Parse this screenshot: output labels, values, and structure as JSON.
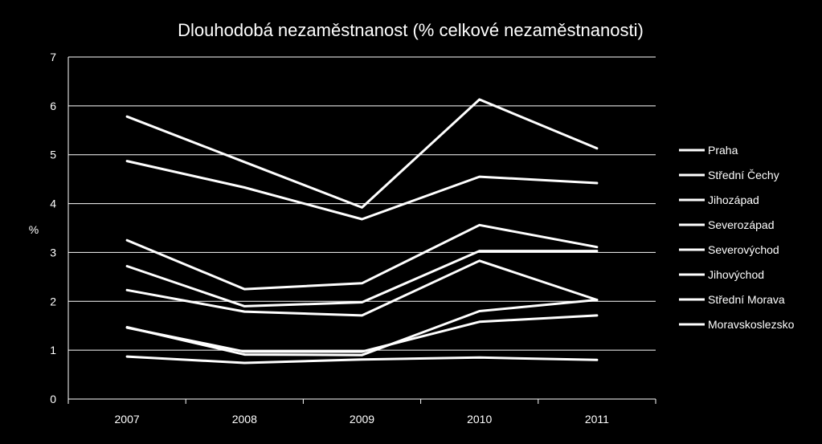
{
  "chart_data": {
    "type": "line",
    "title": "Dlouhodobá nezaměstnanost (% celkové nezaměstnanosti)",
    "xlabel": "",
    "ylabel": "%",
    "categories": [
      "2007",
      "2008",
      "2009",
      "2010",
      "2011"
    ],
    "ylim": [
      0,
      7
    ],
    "yticks": [
      0,
      1,
      2,
      3,
      4,
      5,
      6,
      7
    ],
    "grid": true,
    "legend_position": "right",
    "series": [
      {
        "name": "Praha",
        "values": [
          0.87,
          0.74,
          0.81,
          0.85,
          0.8
        ]
      },
      {
        "name": "Střední Čechy",
        "values": [
          1.46,
          0.97,
          0.97,
          1.58,
          1.71
        ]
      },
      {
        "name": "Jihozápad",
        "values": [
          2.23,
          1.79,
          1.71,
          2.83,
          2.03
        ]
      },
      {
        "name": "Severozápad",
        "values": [
          5.78,
          4.85,
          3.92,
          6.13,
          5.13
        ]
      },
      {
        "name": "Severovýchod",
        "values": [
          1.47,
          0.91,
          0.9,
          1.8,
          2.03
        ]
      },
      {
        "name": "Jihovýchod",
        "values": [
          2.72,
          1.9,
          1.98,
          3.03,
          3.03
        ]
      },
      {
        "name": "Střední Morava",
        "values": [
          3.25,
          2.25,
          2.37,
          3.56,
          3.11
        ]
      },
      {
        "name": "Moravskoslezsko",
        "values": [
          4.87,
          4.33,
          3.68,
          4.55,
          4.42
        ]
      }
    ],
    "colors": {
      "background": "#000000",
      "line": "#ffffff",
      "grid": "#ffffff",
      "text": "#ffffff"
    }
  }
}
